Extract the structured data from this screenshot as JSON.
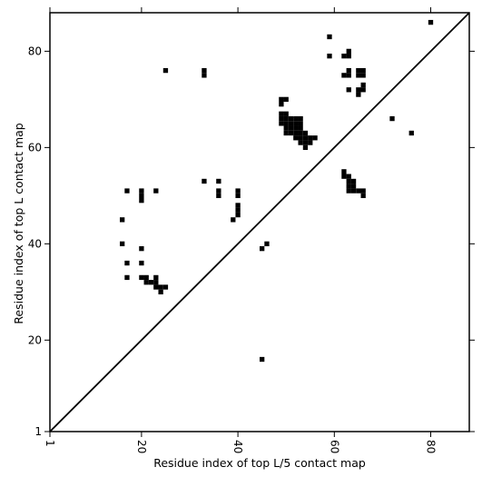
{
  "chart_data": {
    "type": "heatmap",
    "title": "",
    "xlabel": "Residue index of top L/5 contact map",
    "ylabel": "Residue index of top L contact map",
    "xlim": [
      1,
      88
    ],
    "ylim": [
      1,
      88
    ],
    "x_ticks": [
      1,
      20,
      40,
      60,
      80
    ],
    "y_ticks": [
      1,
      20,
      40,
      60,
      80
    ],
    "diagonal": true,
    "grid": false,
    "colors": {
      "contact": "#000000",
      "background": "#ffffff",
      "axes": "#000000"
    },
    "contacts": [
      [
        45,
        16
      ],
      [
        17,
        33
      ],
      [
        20,
        33
      ],
      [
        21,
        33
      ],
      [
        23,
        33
      ],
      [
        21,
        32
      ],
      [
        22,
        32
      ],
      [
        23,
        32
      ],
      [
        23,
        31
      ],
      [
        24,
        31
      ],
      [
        25,
        31
      ],
      [
        24,
        30
      ],
      [
        17,
        36
      ],
      [
        20,
        36
      ],
      [
        20,
        39
      ],
      [
        16,
        40
      ],
      [
        16,
        45
      ],
      [
        17,
        51
      ],
      [
        20,
        51
      ],
      [
        20,
        50
      ],
      [
        20,
        49
      ],
      [
        23,
        51
      ],
      [
        33,
        53
      ],
      [
        36,
        53
      ],
      [
        36,
        51
      ],
      [
        36,
        50
      ],
      [
        39,
        45
      ],
      [
        40,
        46
      ],
      [
        40,
        47
      ],
      [
        40,
        48
      ],
      [
        40,
        50
      ],
      [
        40,
        51
      ],
      [
        45,
        39
      ],
      [
        46,
        40
      ],
      [
        25,
        76
      ],
      [
        33,
        76
      ],
      [
        33,
        75
      ],
      [
        49,
        70
      ],
      [
        50,
        70
      ],
      [
        49,
        69
      ],
      [
        49,
        67
      ],
      [
        50,
        67
      ],
      [
        49,
        66
      ],
      [
        50,
        66
      ],
      [
        51,
        66
      ],
      [
        52,
        66
      ],
      [
        53,
        66
      ],
      [
        49,
        65
      ],
      [
        50,
        65
      ],
      [
        51,
        65
      ],
      [
        52,
        65
      ],
      [
        53,
        65
      ],
      [
        50,
        64
      ],
      [
        51,
        64
      ],
      [
        52,
        64
      ],
      [
        53,
        64
      ],
      [
        50,
        63
      ],
      [
        51,
        63
      ],
      [
        52,
        63
      ],
      [
        53,
        63
      ],
      [
        54,
        63
      ],
      [
        52,
        62
      ],
      [
        53,
        62
      ],
      [
        54,
        62
      ],
      [
        55,
        62
      ],
      [
        56,
        62
      ],
      [
        53,
        61
      ],
      [
        54,
        61
      ],
      [
        55,
        61
      ],
      [
        54,
        60
      ],
      [
        59,
        83
      ],
      [
        59,
        79
      ],
      [
        62,
        79
      ],
      [
        63,
        79
      ],
      [
        63,
        80
      ],
      [
        62,
        75
      ],
      [
        63,
        75
      ],
      [
        63,
        76
      ],
      [
        65,
        76
      ],
      [
        66,
        76
      ],
      [
        65,
        75
      ],
      [
        66,
        75
      ],
      [
        66,
        73
      ],
      [
        65,
        72
      ],
      [
        66,
        72
      ],
      [
        63,
        72
      ],
      [
        65,
        71
      ],
      [
        72,
        66
      ],
      [
        76,
        63
      ],
      [
        80,
        86
      ],
      [
        62,
        55
      ],
      [
        62,
        54
      ],
      [
        63,
        54
      ],
      [
        63,
        53
      ],
      [
        64,
        53
      ],
      [
        63,
        52
      ],
      [
        64,
        52
      ],
      [
        63,
        51
      ],
      [
        64,
        51
      ],
      [
        65,
        51
      ],
      [
        66,
        51
      ],
      [
        66,
        50
      ]
    ]
  }
}
